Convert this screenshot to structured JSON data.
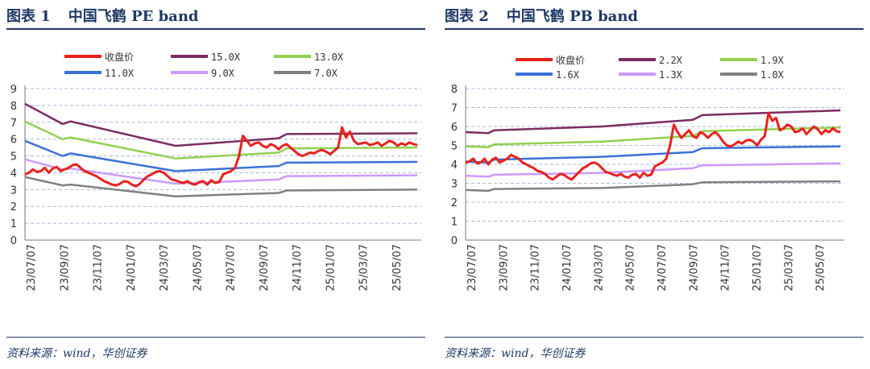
{
  "chart_data": [
    {
      "type": "line",
      "title_label": "图表 1",
      "title": "中国飞鹤 PE band",
      "source": "资料来源：wind，华创证券",
      "ylim": [
        0,
        9
      ],
      "yticks": [
        "0",
        "1",
        "2",
        "3",
        "4",
        "5",
        "6",
        "7",
        "8",
        "9"
      ],
      "xtick_labels": [
        "23/07/07",
        "23/09/07",
        "23/11/07",
        "24/01/07",
        "24/03/07",
        "24/05/07",
        "24/07/07",
        "24/09/07",
        "24/11/07",
        "25/01/07",
        "25/03/07",
        "25/05/07"
      ],
      "grid": "horizontal-dashed",
      "legend_position": "top",
      "series": [
        {
          "name": "收盘价",
          "color": "#e8211c",
          "width": 3,
          "values": [
            3.9,
            4.0,
            4.2,
            4.05,
            4.1,
            4.3,
            4.0,
            4.25,
            4.35,
            4.1,
            4.2,
            4.3,
            4.45,
            4.5,
            4.3,
            4.1,
            4.0,
            3.9,
            3.8,
            3.65,
            3.5,
            3.4,
            3.3,
            3.25,
            3.35,
            3.5,
            3.45,
            3.3,
            3.2,
            3.35,
            3.6,
            3.8,
            3.9,
            4.05,
            4.1,
            4.0,
            3.8,
            3.6,
            3.55,
            3.45,
            3.4,
            3.5,
            3.35,
            3.3,
            3.45,
            3.5,
            3.3,
            3.55,
            3.4,
            3.45,
            3.9,
            4.0,
            4.1,
            4.3,
            5.0,
            6.2,
            5.9,
            5.6,
            5.75,
            5.8,
            5.6,
            5.5,
            5.7,
            5.6,
            5.4,
            5.6,
            5.7,
            5.5,
            5.3,
            5.1,
            5.0,
            5.1,
            5.2,
            5.15,
            5.3,
            5.35,
            5.25,
            5.1,
            5.3,
            5.5,
            6.7,
            6.1,
            6.45,
            5.9,
            5.7,
            5.75,
            5.8,
            5.65,
            5.7,
            5.8,
            5.6,
            5.75,
            5.9,
            5.8,
            5.6,
            5.75,
            5.65,
            5.8,
            5.7,
            5.65
          ]
        },
        {
          "name": "15.0X",
          "color": "#7b2c5f",
          "width": 2.5,
          "points": [
            [
              0,
              8.1
            ],
            [
              0.095,
              6.9
            ],
            [
              0.115,
              7.05
            ],
            [
              0.38,
              5.6
            ],
            [
              0.64,
              6.05
            ],
            [
              0.66,
              6.3
            ],
            [
              0.99,
              6.35
            ]
          ]
        },
        {
          "name": "13.0X",
          "color": "#92d050",
          "width": 2.5,
          "points": [
            [
              0,
              7.05
            ],
            [
              0.095,
              6.0
            ],
            [
              0.115,
              6.1
            ],
            [
              0.38,
              4.85
            ],
            [
              0.64,
              5.2
            ],
            [
              0.66,
              5.45
            ],
            [
              0.99,
              5.5
            ]
          ]
        },
        {
          "name": "11.0X",
          "color": "#3a71d8",
          "width": 2.5,
          "points": [
            [
              0,
              5.9
            ],
            [
              0.095,
              5.0
            ],
            [
              0.115,
              5.15
            ],
            [
              0.38,
              4.1
            ],
            [
              0.64,
              4.4
            ],
            [
              0.66,
              4.6
            ],
            [
              0.99,
              4.65
            ]
          ]
        },
        {
          "name": "9.0X",
          "color": "#cc99ff",
          "width": 2.5,
          "points": [
            [
              0,
              4.8
            ],
            [
              0.095,
              4.2
            ],
            [
              0.115,
              4.25
            ],
            [
              0.38,
              3.35
            ],
            [
              0.64,
              3.6
            ],
            [
              0.66,
              3.8
            ],
            [
              0.99,
              3.85
            ]
          ]
        },
        {
          "name": "7.0X",
          "color": "#808080",
          "width": 2.5,
          "points": [
            [
              0,
              3.75
            ],
            [
              0.095,
              3.25
            ],
            [
              0.115,
              3.3
            ],
            [
              0.38,
              2.6
            ],
            [
              0.64,
              2.8
            ],
            [
              0.66,
              2.95
            ],
            [
              0.99,
              3.0
            ]
          ]
        }
      ]
    },
    {
      "type": "line",
      "title_label": "图表 2",
      "title": "中国飞鹤 PB band",
      "source": "资料来源：wind，华创证券",
      "ylim": [
        0,
        8
      ],
      "yticks": [
        "0",
        "1",
        "2",
        "3",
        "4",
        "5",
        "6",
        "7",
        "8"
      ],
      "xtick_labels": [
        "23/07/07",
        "23/09/07",
        "23/11/07",
        "24/01/07",
        "24/03/07",
        "24/05/07",
        "24/07/07",
        "24/09/07",
        "24/11/07",
        "25/01/07",
        "25/03/07",
        "25/05/07"
      ],
      "grid": "horizontal-dashed",
      "legend_position": "top",
      "series": [
        {
          "name": "收盘价",
          "color": "#e8211c",
          "width": 3,
          "values": [
            4.1,
            4.15,
            4.3,
            4.05,
            4.1,
            4.3,
            4.0,
            4.25,
            4.35,
            4.1,
            4.2,
            4.3,
            4.5,
            4.4,
            4.3,
            4.1,
            4.0,
            3.9,
            3.8,
            3.65,
            3.6,
            3.5,
            3.3,
            3.2,
            3.35,
            3.5,
            3.45,
            3.3,
            3.2,
            3.4,
            3.6,
            3.8,
            3.9,
            4.05,
            4.1,
            4.0,
            3.8,
            3.6,
            3.55,
            3.45,
            3.4,
            3.5,
            3.35,
            3.3,
            3.45,
            3.5,
            3.3,
            3.55,
            3.4,
            3.45,
            3.9,
            4.0,
            4.1,
            4.3,
            5.0,
            6.1,
            5.7,
            5.4,
            5.6,
            5.8,
            5.5,
            5.4,
            5.7,
            5.6,
            5.4,
            5.6,
            5.7,
            5.5,
            5.2,
            5.0,
            4.95,
            5.05,
            5.2,
            5.1,
            5.25,
            5.3,
            5.2,
            5.0,
            5.3,
            5.5,
            6.7,
            6.3,
            6.45,
            5.8,
            5.9,
            6.1,
            6.0,
            5.7,
            5.75,
            5.9,
            5.6,
            5.8,
            6.0,
            5.85,
            5.6,
            5.8,
            5.7,
            5.9,
            5.75,
            5.7
          ]
        },
        {
          "name": "2.2X",
          "color": "#7b2c5f",
          "width": 2.5,
          "points": [
            [
              0,
              5.7
            ],
            [
              0.06,
              5.65
            ],
            [
              0.075,
              5.8
            ],
            [
              0.36,
              6.0
            ],
            [
              0.6,
              6.35
            ],
            [
              0.625,
              6.6
            ],
            [
              0.99,
              6.85
            ]
          ]
        },
        {
          "name": "1.9X",
          "color": "#92d050",
          "width": 2.5,
          "points": [
            [
              0,
              4.95
            ],
            [
              0.06,
              4.9
            ],
            [
              0.075,
              5.05
            ],
            [
              0.36,
              5.2
            ],
            [
              0.6,
              5.5
            ],
            [
              0.625,
              5.75
            ],
            [
              0.99,
              5.95
            ]
          ]
        },
        {
          "name": "1.6X",
          "color": "#3a71d8",
          "width": 2.5,
          "points": [
            [
              0,
              4.15
            ],
            [
              0.06,
              4.1
            ],
            [
              0.075,
              4.25
            ],
            [
              0.36,
              4.4
            ],
            [
              0.6,
              4.65
            ],
            [
              0.625,
              4.85
            ],
            [
              0.99,
              4.95
            ]
          ]
        },
        {
          "name": "1.3X",
          "color": "#cc99ff",
          "width": 2.5,
          "points": [
            [
              0,
              3.4
            ],
            [
              0.06,
              3.35
            ],
            [
              0.075,
              3.45
            ],
            [
              0.36,
              3.55
            ],
            [
              0.6,
              3.8
            ],
            [
              0.625,
              3.95
            ],
            [
              0.99,
              4.05
            ]
          ]
        },
        {
          "name": "1.0X",
          "color": "#808080",
          "width": 2.5,
          "points": [
            [
              0,
              2.65
            ],
            [
              0.06,
              2.6
            ],
            [
              0.075,
              2.7
            ],
            [
              0.36,
              2.75
            ],
            [
              0.6,
              2.95
            ],
            [
              0.625,
              3.05
            ],
            [
              0.99,
              3.1
            ]
          ]
        }
      ]
    }
  ]
}
